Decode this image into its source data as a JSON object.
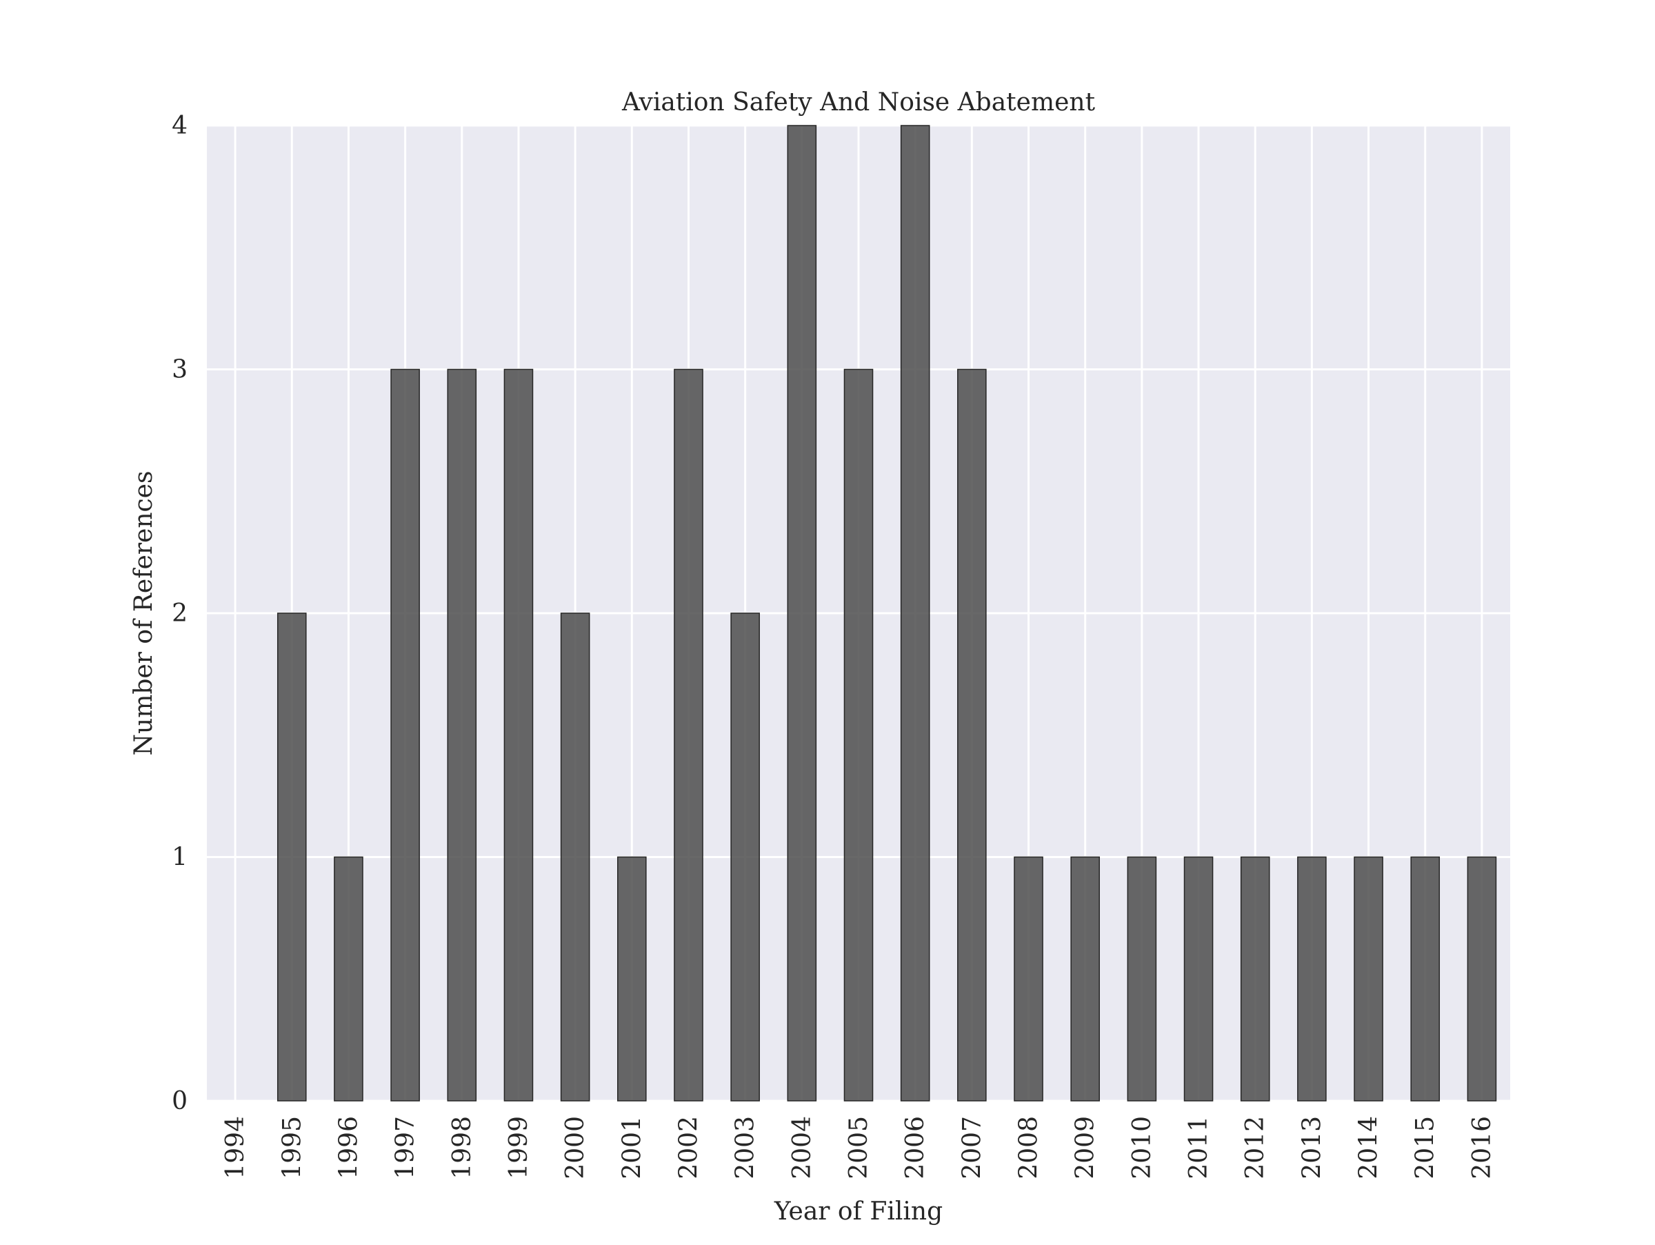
{
  "chart_data": {
    "type": "bar",
    "title": "Aviation Safety And Noise Abatement",
    "xlabel": "Year of Filing",
    "ylabel": "Number of References",
    "categories": [
      "1994",
      "1995",
      "1996",
      "1997",
      "1998",
      "1999",
      "2000",
      "2001",
      "2002",
      "2003",
      "2004",
      "2005",
      "2006",
      "2007",
      "2008",
      "2009",
      "2010",
      "2011",
      "2012",
      "2013",
      "2014",
      "2015",
      "2016"
    ],
    "values": [
      0,
      2,
      1,
      3,
      3,
      3,
      2,
      1,
      3,
      2,
      4,
      3,
      4,
      3,
      1,
      1,
      1,
      1,
      1,
      1,
      1,
      1,
      1
    ],
    "ylim": [
      0,
      4
    ],
    "yticks": [
      0,
      1,
      2,
      3,
      4
    ],
    "grid": true,
    "colors": {
      "plot_background": "#eaeaf2",
      "grid": "#ffffff",
      "bar_fill": "#4d4d4d",
      "bar_edge": "#262626"
    }
  }
}
